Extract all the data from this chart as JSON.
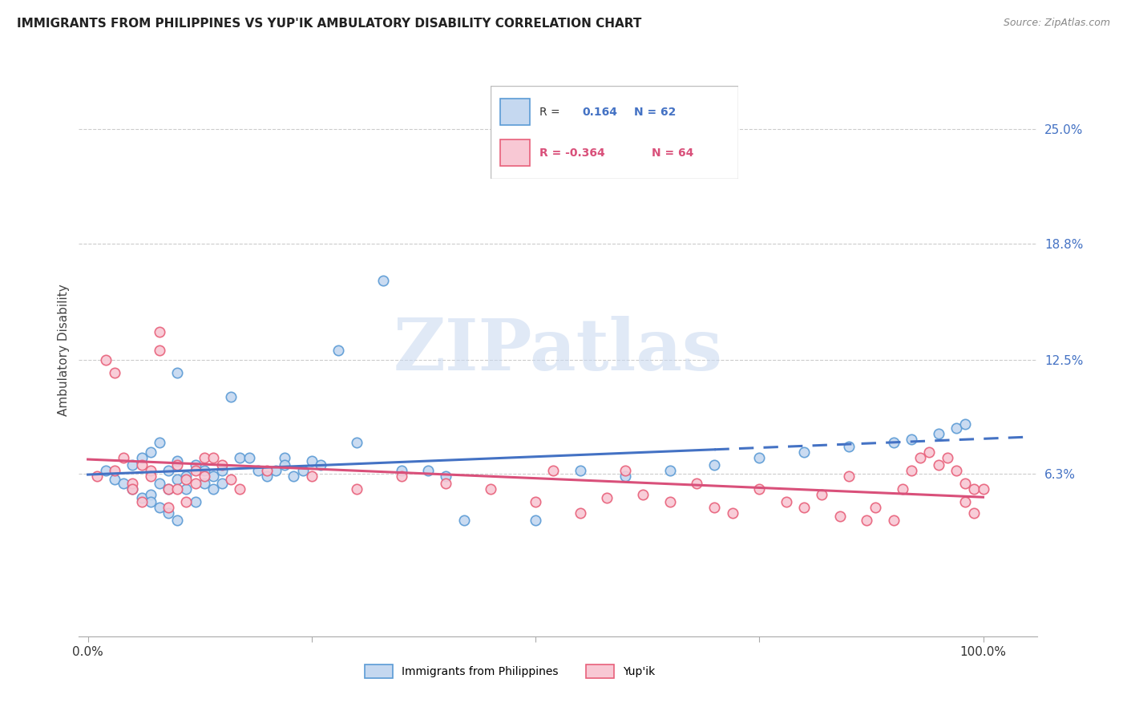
{
  "title": "IMMIGRANTS FROM PHILIPPINES VS YUP'IK AMBULATORY DISABILITY CORRELATION CHART",
  "source": "Source: ZipAtlas.com",
  "ylabel": "Ambulatory Disability",
  "blue_fill_color": "#c5d8f0",
  "blue_edge_color": "#5b9bd5",
  "pink_fill_color": "#f8c8d4",
  "pink_edge_color": "#e8607a",
  "blue_line_color": "#4472c4",
  "pink_line_color": "#d9507a",
  "legend_label1": "Immigrants from Philippines",
  "legend_label2": "Yup'ik",
  "watermark": "ZIPatlas",
  "ytick_vals": [
    0.063,
    0.125,
    0.188,
    0.25
  ],
  "ytick_labels": [
    "6.3%",
    "12.5%",
    "18.8%",
    "25.0%"
  ],
  "blue_scatter_x": [
    0.02,
    0.03,
    0.04,
    0.05,
    0.05,
    0.06,
    0.06,
    0.07,
    0.07,
    0.07,
    0.08,
    0.08,
    0.08,
    0.09,
    0.09,
    0.09,
    0.1,
    0.1,
    0.1,
    0.1,
    0.11,
    0.11,
    0.12,
    0.12,
    0.13,
    0.13,
    0.14,
    0.14,
    0.15,
    0.15,
    0.16,
    0.17,
    0.18,
    0.19,
    0.2,
    0.21,
    0.22,
    0.22,
    0.23,
    0.24,
    0.25,
    0.26,
    0.28,
    0.3,
    0.33,
    0.35,
    0.38,
    0.4,
    0.42,
    0.5,
    0.55,
    0.6,
    0.65,
    0.7,
    0.75,
    0.8,
    0.85,
    0.9,
    0.92,
    0.95,
    0.97,
    0.98
  ],
  "blue_scatter_y": [
    0.065,
    0.06,
    0.058,
    0.055,
    0.068,
    0.072,
    0.05,
    0.075,
    0.052,
    0.048,
    0.08,
    0.058,
    0.045,
    0.065,
    0.055,
    0.042,
    0.118,
    0.07,
    0.06,
    0.038,
    0.062,
    0.055,
    0.068,
    0.048,
    0.065,
    0.058,
    0.062,
    0.055,
    0.065,
    0.058,
    0.105,
    0.072,
    0.072,
    0.065,
    0.062,
    0.065,
    0.072,
    0.068,
    0.062,
    0.065,
    0.07,
    0.068,
    0.13,
    0.08,
    0.168,
    0.065,
    0.065,
    0.062,
    0.038,
    0.038,
    0.065,
    0.062,
    0.065,
    0.068,
    0.072,
    0.075,
    0.078,
    0.08,
    0.082,
    0.085,
    0.088,
    0.09
  ],
  "pink_scatter_x": [
    0.01,
    0.02,
    0.03,
    0.03,
    0.04,
    0.05,
    0.05,
    0.06,
    0.06,
    0.07,
    0.07,
    0.08,
    0.08,
    0.09,
    0.09,
    0.1,
    0.1,
    0.11,
    0.11,
    0.12,
    0.12,
    0.13,
    0.13,
    0.14,
    0.15,
    0.16,
    0.17,
    0.2,
    0.25,
    0.3,
    0.35,
    0.4,
    0.45,
    0.5,
    0.52,
    0.55,
    0.58,
    0.6,
    0.62,
    0.65,
    0.68,
    0.7,
    0.72,
    0.75,
    0.78,
    0.8,
    0.82,
    0.84,
    0.85,
    0.87,
    0.88,
    0.9,
    0.91,
    0.92,
    0.93,
    0.94,
    0.95,
    0.96,
    0.97,
    0.98,
    0.98,
    0.99,
    0.99,
    1.0
  ],
  "pink_scatter_y": [
    0.062,
    0.125,
    0.118,
    0.065,
    0.072,
    0.058,
    0.055,
    0.068,
    0.048,
    0.065,
    0.062,
    0.13,
    0.14,
    0.055,
    0.045,
    0.068,
    0.055,
    0.06,
    0.048,
    0.058,
    0.065,
    0.072,
    0.062,
    0.072,
    0.068,
    0.06,
    0.055,
    0.065,
    0.062,
    0.055,
    0.062,
    0.058,
    0.055,
    0.048,
    0.065,
    0.042,
    0.05,
    0.065,
    0.052,
    0.048,
    0.058,
    0.045,
    0.042,
    0.055,
    0.048,
    0.045,
    0.052,
    0.04,
    0.062,
    0.038,
    0.045,
    0.038,
    0.055,
    0.065,
    0.072,
    0.075,
    0.068,
    0.072,
    0.065,
    0.058,
    0.048,
    0.055,
    0.042,
    0.055
  ]
}
